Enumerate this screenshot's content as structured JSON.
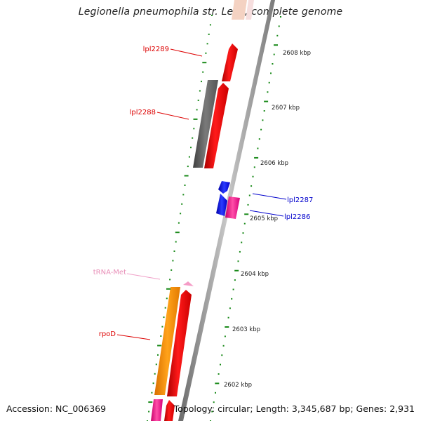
{
  "title": "Legionella pneumophila str. Lens, complete genome",
  "footer": {
    "accession": "Accession: NC_006369",
    "stats": "Topology: circular; Length: 3,345,687 bp; Genes: 2,931"
  },
  "ticks": [
    {
      "label": "2608 kbp"
    },
    {
      "label": "2607 kbp"
    },
    {
      "label": "2606 kbp"
    },
    {
      "label": "2605 kbp"
    },
    {
      "label": "2604 kbp"
    },
    {
      "label": "2603 kbp"
    },
    {
      "label": "2602 kbp"
    }
  ],
  "genes": [
    {
      "label": "lpl2289",
      "color": "#dd0000"
    },
    {
      "label": "lpl2288",
      "color": "#dd0000"
    },
    {
      "label": "lpl2287",
      "color": "#0000cc"
    },
    {
      "label": "lpl2286",
      "color": "#0000cc"
    },
    {
      "label": "tRNA-Met",
      "color": "#e88fb8"
    },
    {
      "label": "rpoD",
      "color": "#dd0000"
    }
  ],
  "colors": {
    "backbone": "#9a9a9a",
    "cds": "#ff0000",
    "orf": "#6b6b6b",
    "pink": "#ff3399",
    "orange": "#ff8c00",
    "blue": "#0011ee",
    "tick": "#1a8a1a"
  }
}
